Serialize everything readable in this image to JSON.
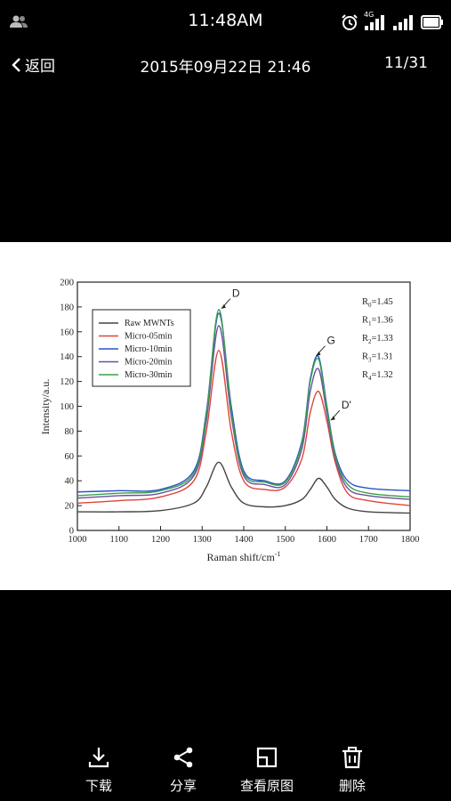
{
  "status_bar": {
    "time": "11:48AM",
    "left_icon": "user-group-icon",
    "right_icons": [
      "alarm-clock-icon",
      "4g-signal-icon",
      "cell-signal-icon",
      "battery-icon"
    ],
    "network_label": "4G"
  },
  "nav": {
    "back_label": "返回",
    "title": "2015年09月22日 21:46",
    "counter": "11/31"
  },
  "chart_data": {
    "type": "line",
    "title": "",
    "xlabel": "Raman shift/cm",
    "xlabel_superscript": "-1",
    "ylabel": "Intensity/a.u.",
    "xlim": [
      1000,
      1800
    ],
    "ylim": [
      0,
      200
    ],
    "x_ticks": [
      "1000",
      "1100",
      "1200",
      "1300",
      "1400",
      "1500",
      "1600",
      "1700",
      "1800"
    ],
    "y_ticks": [
      "0",
      "20",
      "40",
      "60",
      "80",
      "100",
      "120",
      "140",
      "160",
      "180",
      "200"
    ],
    "legend_position": "top-left",
    "grid": false,
    "series": [
      {
        "name": "Raw MWNTs",
        "color": "#444444",
        "x": [
          1000,
          1100,
          1200,
          1280,
          1310,
          1340,
          1370,
          1400,
          1450,
          1500,
          1540,
          1560,
          1580,
          1600,
          1620,
          1650,
          1700,
          1800
        ],
        "values": [
          15,
          15,
          16,
          22,
          35,
          55,
          35,
          22,
          19,
          20,
          25,
          33,
          42,
          35,
          25,
          18,
          15,
          14
        ]
      },
      {
        "name": "Micro-05min",
        "color": "#e0443a",
        "x": [
          1000,
          1100,
          1200,
          1280,
          1310,
          1340,
          1370,
          1400,
          1450,
          1500,
          1540,
          1560,
          1580,
          1600,
          1620,
          1650,
          1700,
          1800
        ],
        "values": [
          22,
          24,
          27,
          40,
          80,
          145,
          80,
          40,
          33,
          35,
          58,
          95,
          112,
          88,
          55,
          30,
          24,
          20
        ]
      },
      {
        "name": "Micro-10min",
        "color": "#2a52c8",
        "x": [
          1000,
          1100,
          1200,
          1280,
          1310,
          1340,
          1370,
          1400,
          1450,
          1500,
          1540,
          1560,
          1580,
          1600,
          1620,
          1650,
          1700,
          1800
        ],
        "values": [
          31,
          32,
          33,
          48,
          95,
          175,
          100,
          48,
          40,
          40,
          72,
          122,
          140,
          100,
          62,
          40,
          34,
          32
        ]
      },
      {
        "name": "Micro-20min",
        "color": "#6a4fa0",
        "x": [
          1000,
          1100,
          1200,
          1280,
          1310,
          1340,
          1370,
          1400,
          1450,
          1500,
          1540,
          1560,
          1580,
          1600,
          1620,
          1650,
          1700,
          1800
        ],
        "values": [
          26,
          28,
          30,
          44,
          88,
          165,
          92,
          44,
          37,
          37,
          66,
          112,
          130,
          94,
          58,
          34,
          28,
          25
        ]
      },
      {
        "name": "Micro-30min",
        "color": "#3aa04a",
        "x": [
          1000,
          1100,
          1200,
          1280,
          1310,
          1340,
          1370,
          1400,
          1450,
          1500,
          1540,
          1560,
          1580,
          1600,
          1620,
          1650,
          1700,
          1800
        ],
        "values": [
          28,
          30,
          32,
          46,
          92,
          178,
          96,
          46,
          39,
          39,
          70,
          120,
          138,
          98,
          60,
          37,
          30,
          27
        ]
      }
    ],
    "peak_labels": [
      {
        "text": "D",
        "x": 1342,
        "y": 178
      },
      {
        "text": "G",
        "x": 1570,
        "y": 140
      },
      {
        "text": "D'",
        "x": 1605,
        "y": 88
      }
    ],
    "ratio_annotations": [
      {
        "prefix": "R",
        "sub": "0",
        "value": "=1.45"
      },
      {
        "prefix": "R",
        "sub": "1",
        "value": "=1.36"
      },
      {
        "prefix": "R",
        "sub": "2",
        "value": "=1.33"
      },
      {
        "prefix": "R",
        "sub": "3",
        "value": "=1.31"
      },
      {
        "prefix": "R",
        "sub": "4",
        "value": "=1.32"
      }
    ]
  },
  "bottom_actions": [
    {
      "label": "下载",
      "icon": "download-icon"
    },
    {
      "label": "分享",
      "icon": "share-icon"
    },
    {
      "label": "查看原图",
      "icon": "view-original-icon"
    },
    {
      "label": "删除",
      "icon": "trash-icon"
    }
  ]
}
